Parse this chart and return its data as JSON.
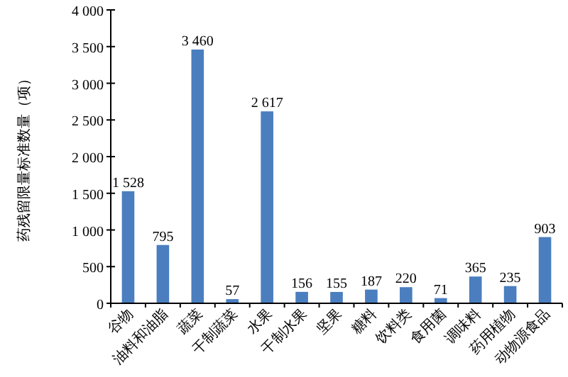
{
  "chart_data": {
    "type": "bar",
    "ylabel": "药残留限量标准数量（项）",
    "categories": [
      "谷物",
      "油料和油脂",
      "蔬菜",
      "干制蔬菜",
      "水果",
      "干制水果",
      "坚果",
      "糖料",
      "饮料类",
      "食用菌",
      "调味料",
      "药用植物",
      "动物源食品"
    ],
    "values": [
      1528,
      795,
      3460,
      57,
      2617,
      156,
      155,
      187,
      220,
      71,
      365,
      235,
      903
    ],
    "value_labels": [
      "1 528",
      "795",
      "3 460",
      "57",
      "2 617",
      "156",
      "155",
      "187",
      "220",
      "71",
      "365",
      "235",
      "903"
    ],
    "color": "#4a7ebf",
    "ylim": [
      0,
      4000
    ],
    "yticks": [
      0,
      500,
      {
        "value": 1000,
        "label": "1 000"
      },
      {
        "value": 1500,
        "label": "1 500"
      },
      {
        "value": 2000,
        "label": "2 000"
      },
      {
        "value": 2500,
        "label": "2 500"
      },
      {
        "value": 3000,
        "label": "3 000"
      },
      {
        "value": 3500,
        "label": "3 500"
      },
      {
        "value": 4000,
        "label": "4 000"
      }
    ],
    "grid": false
  }
}
